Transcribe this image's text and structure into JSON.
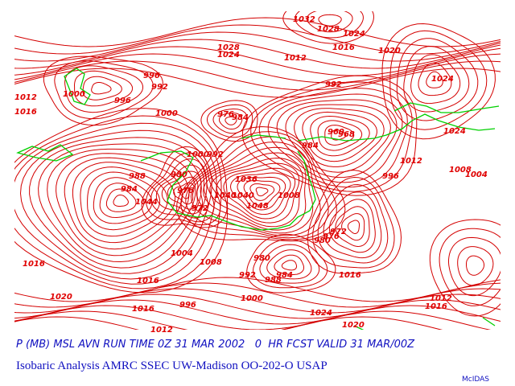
{
  "caption": {
    "line1": "P (MB) MSL AVN RUN TIME 0Z 31 MAR 2002   0  HR FCST VALID 31 MAR/00Z",
    "line2": "Isobaric Analysis AMRC SSEC UW-Madison OO-202-O USAP",
    "credit": "McIDAS"
  },
  "labels": [
    "1032",
    "1028",
    "1024",
    "1028",
    "1024",
    "1016",
    "1020",
    "1012",
    "1024",
    "996",
    "992",
    "1000",
    "996",
    "992",
    "1012",
    "1016",
    "1000",
    "976",
    "984",
    "960",
    "968",
    "1024",
    "984",
    "1012",
    "1008",
    "1004",
    "996",
    "1036",
    "1040",
    "1040",
    "1008",
    "1048",
    "1044",
    "1004",
    "1008",
    "980",
    "972",
    "976",
    "980",
    "992",
    "984",
    "988",
    "1016",
    "1016",
    "1016",
    "1000",
    "1020",
    "1016",
    "996",
    "1024",
    "1012",
    "1016",
    "1020",
    "1012",
    "1000",
    "992",
    "988",
    "984",
    "980",
    "976",
    "972"
  ]
}
